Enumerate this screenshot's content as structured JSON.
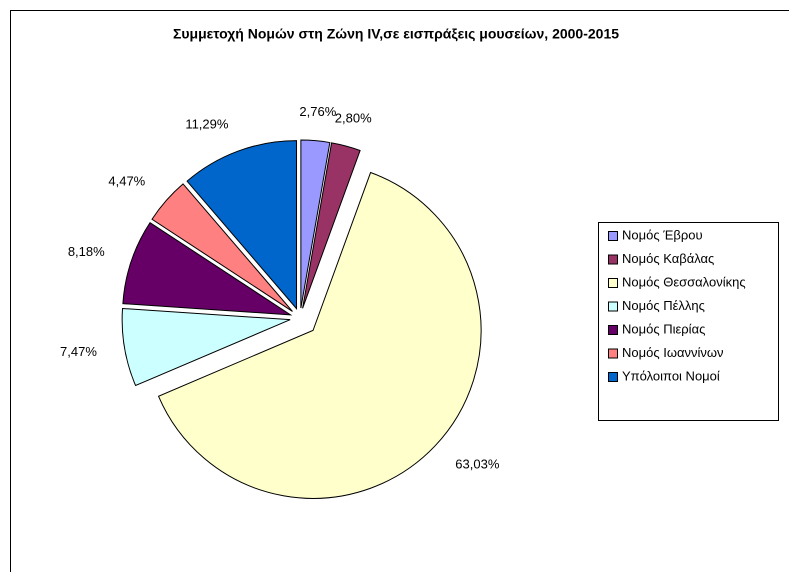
{
  "chart_data": {
    "type": "pie",
    "title": "Συμμετοχή Νομών στη Ζώνη IV,σε εισπράξεις μουσείων, 2000-2015",
    "categories": [
      "Νομός Έβρου",
      "Νομός Καβάλας",
      "Νομός Θεσσαλονίκης",
      "Νομός Πέλλης",
      "Νομός Πιερίας",
      "Νομός Ιωαννίνων",
      "Υπόλοιποι Νομοί"
    ],
    "values": [
      2.76,
      2.8,
      63.03,
      7.47,
      8.18,
      4.47,
      11.29
    ],
    "value_labels": [
      "2,76%",
      "2,80%",
      "63,03%",
      "7,47%",
      "8,18%",
      "4,47%",
      "11,29%"
    ],
    "colors": [
      "#9999ff",
      "#993366",
      "#ffffcc",
      "#ccffff",
      "#660066",
      "#ff8080",
      "#0066cc"
    ],
    "legend": "right"
  }
}
